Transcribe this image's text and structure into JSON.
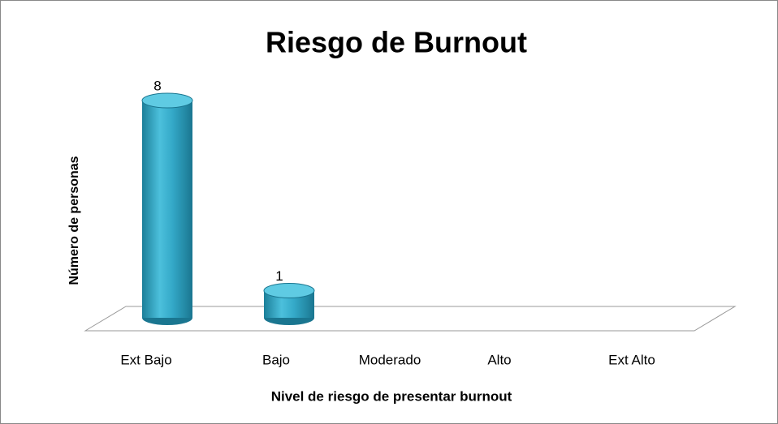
{
  "chart_data": {
    "type": "bar3d",
    "title": "Riesgo de Burnout",
    "y_label": "Número de personas",
    "x_label": "Nivel de riesgo de presentar burnout",
    "categories": [
      "Ext Bajo",
      "Bajo",
      "Moderado",
      "Alto",
      "Ext Alto"
    ],
    "values": [
      8,
      1,
      0,
      0,
      0
    ],
    "color": "#2aa3c2"
  }
}
